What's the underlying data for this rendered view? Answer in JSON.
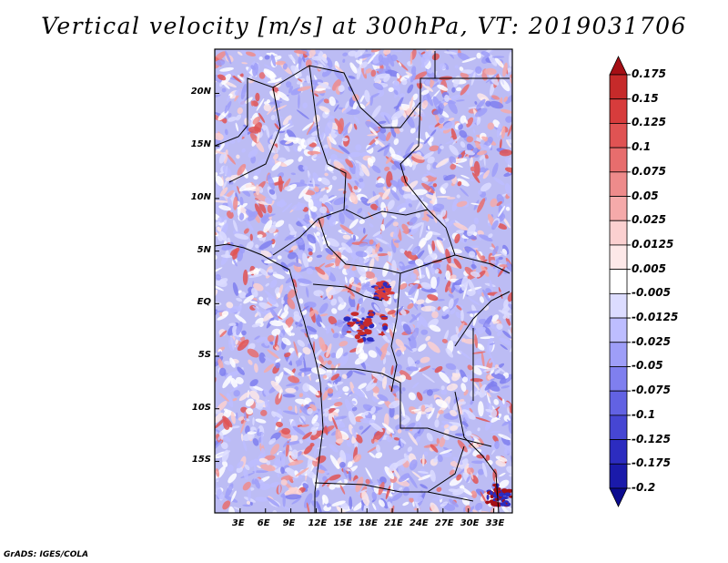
{
  "title": "Vertical velocity [m/s] at 300hPa, VT: 2019031706",
  "footer": "GrADS: IGES/COLA",
  "map": {
    "lon_range": [
      0,
      35.2
    ],
    "lat_range": [
      -19.9,
      24.2
    ],
    "lon_ticks": [
      "3E",
      "6E",
      "9E",
      "12E",
      "15E",
      "18E",
      "21E",
      "24E",
      "27E",
      "30E",
      "33E"
    ],
    "lat_ticks": [
      "20N",
      "15N",
      "10N",
      "5N",
      "EQ",
      "5S",
      "10S",
      "15S"
    ]
  },
  "colorbar": {
    "labels": [
      "0.175",
      "0.15",
      "0.125",
      "0.1",
      "0.075",
      "0.05",
      "0.025",
      "0.0125",
      "0.005",
      "-0.005",
      "-0.0125",
      "-0.025",
      "-0.05",
      "-0.075",
      "-0.1",
      "-0.125",
      "-0.175",
      "-0.2"
    ],
    "colors": [
      "#a50f15",
      "#c62a2a",
      "#d73c3c",
      "#e05353",
      "#e76d6d",
      "#ee8b8b",
      "#f5aaaa",
      "#fbd0d0",
      "#fde8e8",
      "#ffffff",
      "#dcdcff",
      "#bdbdff",
      "#9e9ef8",
      "#7f7fef",
      "#6262e3",
      "#4646d3",
      "#2c2cc0",
      "#1a1aaa",
      "#0b0b8f"
    ]
  }
}
